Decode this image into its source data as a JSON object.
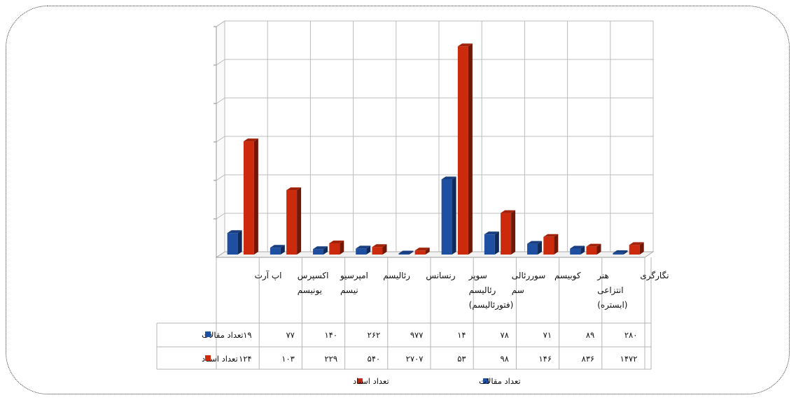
{
  "chart_data": {
    "type": "bar",
    "title": "",
    "xlabel": "",
    "ylabel": "",
    "categories": [
      [
        "نگارگری"
      ],
      [
        "هنر",
        "انتزاعی",
        "(ابستره)"
      ],
      [
        "کوبیسم"
      ],
      [
        "سوررئالی",
        "سم"
      ],
      [
        "سوپر",
        "رئالیسم",
        "(فتورئالیسم)"
      ],
      [
        "رنسانس"
      ],
      [
        "رئالیسم"
      ],
      [
        "امپرسیو",
        "نیسم"
      ],
      [
        "اکسپرس",
        "یونیسم"
      ],
      [
        "اپ آرت"
      ]
    ],
    "series": [
      {
        "name": "تعداد مقالات",
        "color": "#1f4fa0",
        "values": [
          280,
          89,
          71,
          78,
          14,
          977,
          262,
          140,
          77,
          19
        ],
        "labels": [
          "۲۸۰",
          "۸۹",
          "۷۱",
          "۷۸",
          "۱۴",
          "۹۷۷",
          "۲۶۲",
          "۱۴۰",
          "۷۷",
          "۱۹"
        ]
      },
      {
        "name": "تعداد اسناد",
        "color": "#cc2a0c",
        "values": [
          1472,
          836,
          146,
          98,
          53,
          2707,
          540,
          229,
          103,
          124
        ],
        "labels": [
          "۱۴۷۲",
          "۸۳۶",
          "۱۴۶",
          "۹۸",
          "۵۳",
          "۲۷۰۷",
          "۵۴۰",
          "۲۲۹",
          "۱۰۳",
          "۱۲۴"
        ]
      }
    ],
    "ylim": [
      0,
      3000
    ],
    "gridlines": 6,
    "grid": true,
    "y_tick_labels": false,
    "data_table": true,
    "legend_position": "bottom"
  }
}
